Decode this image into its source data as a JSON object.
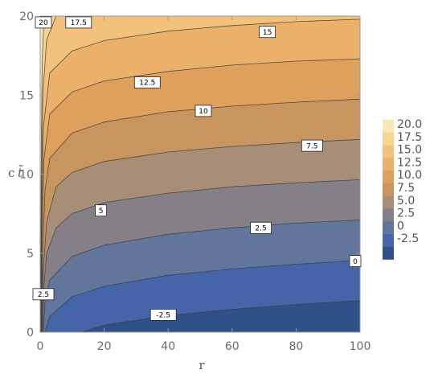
{
  "chart_data": {
    "type": "contour",
    "x": {
      "label": "r",
      "range": [
        0,
        100
      ],
      "ticks": [
        "0",
        "20",
        "40",
        "60",
        "80",
        "100"
      ]
    },
    "y": {
      "label": "c t̃",
      "label_main": "c",
      "label_sub": "t̃",
      "range": [
        0,
        20
      ],
      "ticks": [
        "0",
        "5",
        "10",
        "15",
        "20"
      ]
    },
    "contour_levels": [
      -2.5,
      0,
      2.5,
      5,
      7.5,
      10,
      12.5,
      15,
      17.5,
      20
    ],
    "contour_lines": [
      {
        "level": "-2.5",
        "points": [
          [
            13,
            0
          ],
          [
            20,
            0.45
          ],
          [
            40,
            1.05
          ],
          [
            60,
            1.45
          ],
          [
            80,
            1.75
          ],
          [
            100,
            2.0
          ]
        ]
      },
      {
        "level": "0",
        "points": [
          [
            1.5,
            0
          ],
          [
            3,
            1.0
          ],
          [
            10,
            2.25
          ],
          [
            20,
            2.9
          ],
          [
            40,
            3.6
          ],
          [
            60,
            4.0
          ],
          [
            80,
            4.3
          ],
          [
            100,
            4.55
          ]
        ]
      },
      {
        "level": "2.5",
        "points": [
          [
            1.0,
            0
          ],
          [
            1.5,
            2.0
          ],
          [
            3,
            3.3
          ],
          [
            10,
            4.8
          ],
          [
            20,
            5.5
          ],
          [
            40,
            6.2
          ],
          [
            60,
            6.6
          ],
          [
            80,
            6.9
          ],
          [
            100,
            7.1
          ]
        ]
      },
      {
        "level": "5",
        "points": [
          [
            0.8,
            0
          ],
          [
            1.2,
            3.0
          ],
          [
            2,
            5.0
          ],
          [
            5,
            6.6
          ],
          [
            10,
            7.5
          ],
          [
            20,
            8.2
          ],
          [
            40,
            8.8
          ],
          [
            60,
            9.2
          ],
          [
            80,
            9.45
          ],
          [
            100,
            9.65
          ]
        ]
      },
      {
        "level": "7.5",
        "points": [
          [
            0.6,
            0
          ],
          [
            1.0,
            4.0
          ],
          [
            2,
            7.0
          ],
          [
            5,
            9.2
          ],
          [
            10,
            10.1
          ],
          [
            20,
            10.8
          ],
          [
            40,
            11.4
          ],
          [
            60,
            11.75
          ],
          [
            80,
            12.0
          ],
          [
            100,
            12.2
          ]
        ]
      },
      {
        "level": "10",
        "points": [
          [
            0.5,
            0
          ],
          [
            0.8,
            5.0
          ],
          [
            1.5,
            9.0
          ],
          [
            3,
            11.0
          ],
          [
            10,
            12.6
          ],
          [
            20,
            13.3
          ],
          [
            40,
            13.95
          ],
          [
            60,
            14.3
          ],
          [
            80,
            14.55
          ],
          [
            100,
            14.75
          ]
        ]
      },
      {
        "level": "12.5",
        "points": [
          [
            0.4,
            0
          ],
          [
            0.6,
            6.0
          ],
          [
            1.2,
            11.0
          ],
          [
            3,
            13.8
          ],
          [
            10,
            15.2
          ],
          [
            20,
            15.9
          ],
          [
            40,
            16.5
          ],
          [
            60,
            16.9
          ],
          [
            80,
            17.15
          ],
          [
            100,
            17.3
          ]
        ]
      },
      {
        "level": "15",
        "points": [
          [
            0.3,
            0
          ],
          [
            0.5,
            7.0
          ],
          [
            1.0,
            13.0
          ],
          [
            3,
            16.4
          ],
          [
            10,
            17.8
          ],
          [
            20,
            18.45
          ],
          [
            40,
            19.05
          ],
          [
            60,
            19.4
          ],
          [
            80,
            19.65
          ],
          [
            100,
            19.8
          ]
        ]
      },
      {
        "level": "17.5",
        "points": [
          [
            0.2,
            0
          ],
          [
            0.4,
            8.0
          ],
          [
            0.8,
            15.0
          ],
          [
            2,
            18.5
          ],
          [
            5,
            20.0
          ]
        ]
      },
      {
        "level": "20",
        "points": [
          [
            0.15,
            0
          ],
          [
            0.3,
            10.0
          ],
          [
            0.6,
            17.0
          ],
          [
            1.2,
            20.0
          ]
        ]
      }
    ],
    "contour_labels": [
      {
        "text": "20",
        "x": 1.0,
        "y": 19.6
      },
      {
        "text": "17.5",
        "x": 12.0,
        "y": 19.6
      },
      {
        "text": "15",
        "x": 71.0,
        "y": 19.0
      },
      {
        "text": "12.5",
        "x": 33.5,
        "y": 15.8
      },
      {
        "text": "10",
        "x": 51.0,
        "y": 14.0
      },
      {
        "text": "7.5",
        "x": 85.0,
        "y": 11.8
      },
      {
        "text": "5",
        "x": 19.0,
        "y": 7.7
      },
      {
        "text": "2.5",
        "x": 69.0,
        "y": 6.6
      },
      {
        "text": "2.5",
        "x": 1.0,
        "y": 2.4
      },
      {
        "text": "0",
        "x": 98.5,
        "y": 4.5
      },
      {
        "text": "-2.5",
        "x": 38.5,
        "y": 1.1
      }
    ],
    "legend": {
      "position": "right",
      "entries": [
        {
          "label": "20.0",
          "color": "#FAE7B8"
        },
        {
          "label": "17.5",
          "color": "#F7D394"
        },
        {
          "label": "15.0",
          "color": "#F2C17B"
        },
        {
          "label": "12.5",
          "color": "#EBB06A"
        },
        {
          "label": "10.0",
          "color": "#DFA05D"
        },
        {
          "label": "7.5",
          "color": "#C9955F"
        },
        {
          "label": "5.0",
          "color": "#A88E76"
        },
        {
          "label": "2.5",
          "color": "#858087"
        },
        {
          "label": "0",
          "color": "#62759B"
        },
        {
          "label": "-2.5",
          "color": "#4565A8"
        }
      ],
      "bottom_color": "#2E5288"
    },
    "grid": false
  }
}
